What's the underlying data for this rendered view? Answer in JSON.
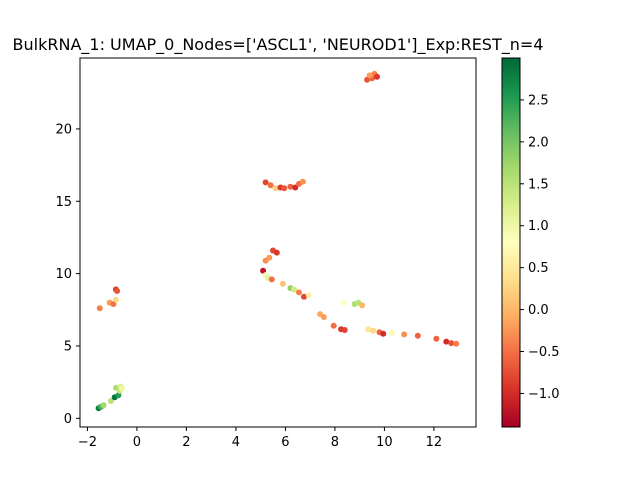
{
  "chart_data": {
    "type": "scatter",
    "title": "BulkRNA_1: UMAP_0_Nodes=['ASCL1', 'NEUROD1']_Exp:REST_n=4",
    "xlabel": "",
    "ylabel": "",
    "xlim": [
      -2.3,
      13.7
    ],
    "ylim": [
      -0.6,
      24.9
    ],
    "x_ticks": [
      -2,
      0,
      2,
      4,
      6,
      8,
      10,
      12
    ],
    "y_ticks": [
      0,
      5,
      10,
      15,
      20
    ],
    "grid": false,
    "colorbar": {
      "colormap": "RdYlGn",
      "vmin": -1.4,
      "vmax": 3.0,
      "ticks": [
        -1.0,
        -0.5,
        0.0,
        0.5,
        1.0,
        1.5,
        2.0,
        2.5
      ],
      "tick_labels": [
        "−1.0",
        "−0.5",
        "0.0",
        "0.5",
        "1.0",
        "1.5",
        "2.0",
        "2.5"
      ]
    },
    "points": [
      {
        "x": 9.3,
        "y": 23.4,
        "c": -0.7
      },
      {
        "x": 9.5,
        "y": 23.5,
        "c": -0.6
      },
      {
        "x": 9.6,
        "y": 23.8,
        "c": -0.4
      },
      {
        "x": 9.7,
        "y": 23.6,
        "c": -0.9
      },
      {
        "x": 9.4,
        "y": 23.7,
        "c": -0.2
      },
      {
        "x": 5.2,
        "y": 16.3,
        "c": -0.8
      },
      {
        "x": 5.4,
        "y": 16.1,
        "c": -0.5
      },
      {
        "x": 5.6,
        "y": 15.9,
        "c": 0.2
      },
      {
        "x": 5.8,
        "y": 15.95,
        "c": -0.9
      },
      {
        "x": 5.95,
        "y": 15.9,
        "c": -0.7
      },
      {
        "x": 6.2,
        "y": 16.0,
        "c": -0.6
      },
      {
        "x": 6.4,
        "y": 15.95,
        "c": -1.0
      },
      {
        "x": 6.55,
        "y": 16.2,
        "c": -0.5
      },
      {
        "x": 6.7,
        "y": 16.35,
        "c": -0.3
      },
      {
        "x": 5.5,
        "y": 11.6,
        "c": -0.8
      },
      {
        "x": 5.65,
        "y": 11.45,
        "c": -0.9
      },
      {
        "x": 5.2,
        "y": 10.9,
        "c": -0.3
      },
      {
        "x": 5.35,
        "y": 11.1,
        "c": -0.2
      },
      {
        "x": 5.1,
        "y": 10.2,
        "c": -1.2
      },
      {
        "x": 5.2,
        "y": 9.9,
        "c": 0.9
      },
      {
        "x": 5.3,
        "y": 9.7,
        "c": 1.1
      },
      {
        "x": 5.45,
        "y": 9.6,
        "c": -0.5
      },
      {
        "x": 5.9,
        "y": 9.3,
        "c": 0.1
      },
      {
        "x": 6.2,
        "y": 9.0,
        "c": 1.8
      },
      {
        "x": 6.35,
        "y": 8.9,
        "c": 1.3
      },
      {
        "x": 6.55,
        "y": 8.7,
        "c": -0.4
      },
      {
        "x": 6.75,
        "y": 8.4,
        "c": -0.8
      },
      {
        "x": 6.95,
        "y": 8.5,
        "c": 0.6
      },
      {
        "x": 7.4,
        "y": 7.2,
        "c": -0.1
      },
      {
        "x": 7.55,
        "y": 7.0,
        "c": -0.2
      },
      {
        "x": 7.95,
        "y": 6.4,
        "c": -0.5
      },
      {
        "x": 8.25,
        "y": 6.15,
        "c": -0.9
      },
      {
        "x": 8.4,
        "y": 6.1,
        "c": -0.8
      },
      {
        "x": 8.35,
        "y": 8.0,
        "c": 0.8
      },
      {
        "x": 8.8,
        "y": 7.9,
        "c": 1.6
      },
      {
        "x": 8.95,
        "y": 8.0,
        "c": 1.5
      },
      {
        "x": 9.1,
        "y": 7.8,
        "c": 0.0
      },
      {
        "x": 9.35,
        "y": 6.15,
        "c": 0.4
      },
      {
        "x": 9.55,
        "y": 6.05,
        "c": 0.3
      },
      {
        "x": 9.8,
        "y": 5.95,
        "c": -0.6
      },
      {
        "x": 9.95,
        "y": 5.85,
        "c": -1.0
      },
      {
        "x": 10.3,
        "y": 5.9,
        "c": 0.7
      },
      {
        "x": 10.8,
        "y": 5.8,
        "c": -0.3
      },
      {
        "x": 11.35,
        "y": 5.7,
        "c": -0.6
      },
      {
        "x": 12.1,
        "y": 5.5,
        "c": -0.6
      },
      {
        "x": 12.5,
        "y": 5.3,
        "c": -1.0
      },
      {
        "x": 12.7,
        "y": 5.2,
        "c": -0.7
      },
      {
        "x": 12.9,
        "y": 5.15,
        "c": -0.4
      },
      {
        "x": -0.85,
        "y": 8.9,
        "c": -0.9
      },
      {
        "x": -0.8,
        "y": 8.8,
        "c": -0.7
      },
      {
        "x": -1.1,
        "y": 8.0,
        "c": -0.2
      },
      {
        "x": -0.95,
        "y": 7.9,
        "c": -0.5
      },
      {
        "x": -0.85,
        "y": 8.2,
        "c": 0.3
      },
      {
        "x": -1.5,
        "y": 7.6,
        "c": -0.4
      },
      {
        "x": -1.55,
        "y": 0.7,
        "c": 2.8
      },
      {
        "x": -1.45,
        "y": 0.8,
        "c": 2.3
      },
      {
        "x": -1.35,
        "y": 0.9,
        "c": 1.7
      },
      {
        "x": -1.05,
        "y": 1.2,
        "c": 1.5
      },
      {
        "x": -0.9,
        "y": 1.45,
        "c": 2.9
      },
      {
        "x": -0.75,
        "y": 1.6,
        "c": 2.5
      },
      {
        "x": -0.85,
        "y": 2.1,
        "c": 1.6
      },
      {
        "x": -0.65,
        "y": 2.2,
        "c": 1.2
      },
      {
        "x": -0.7,
        "y": 1.9,
        "c": 1.4
      },
      {
        "x": -0.6,
        "y": 2.05,
        "c": 1.0
      }
    ]
  }
}
